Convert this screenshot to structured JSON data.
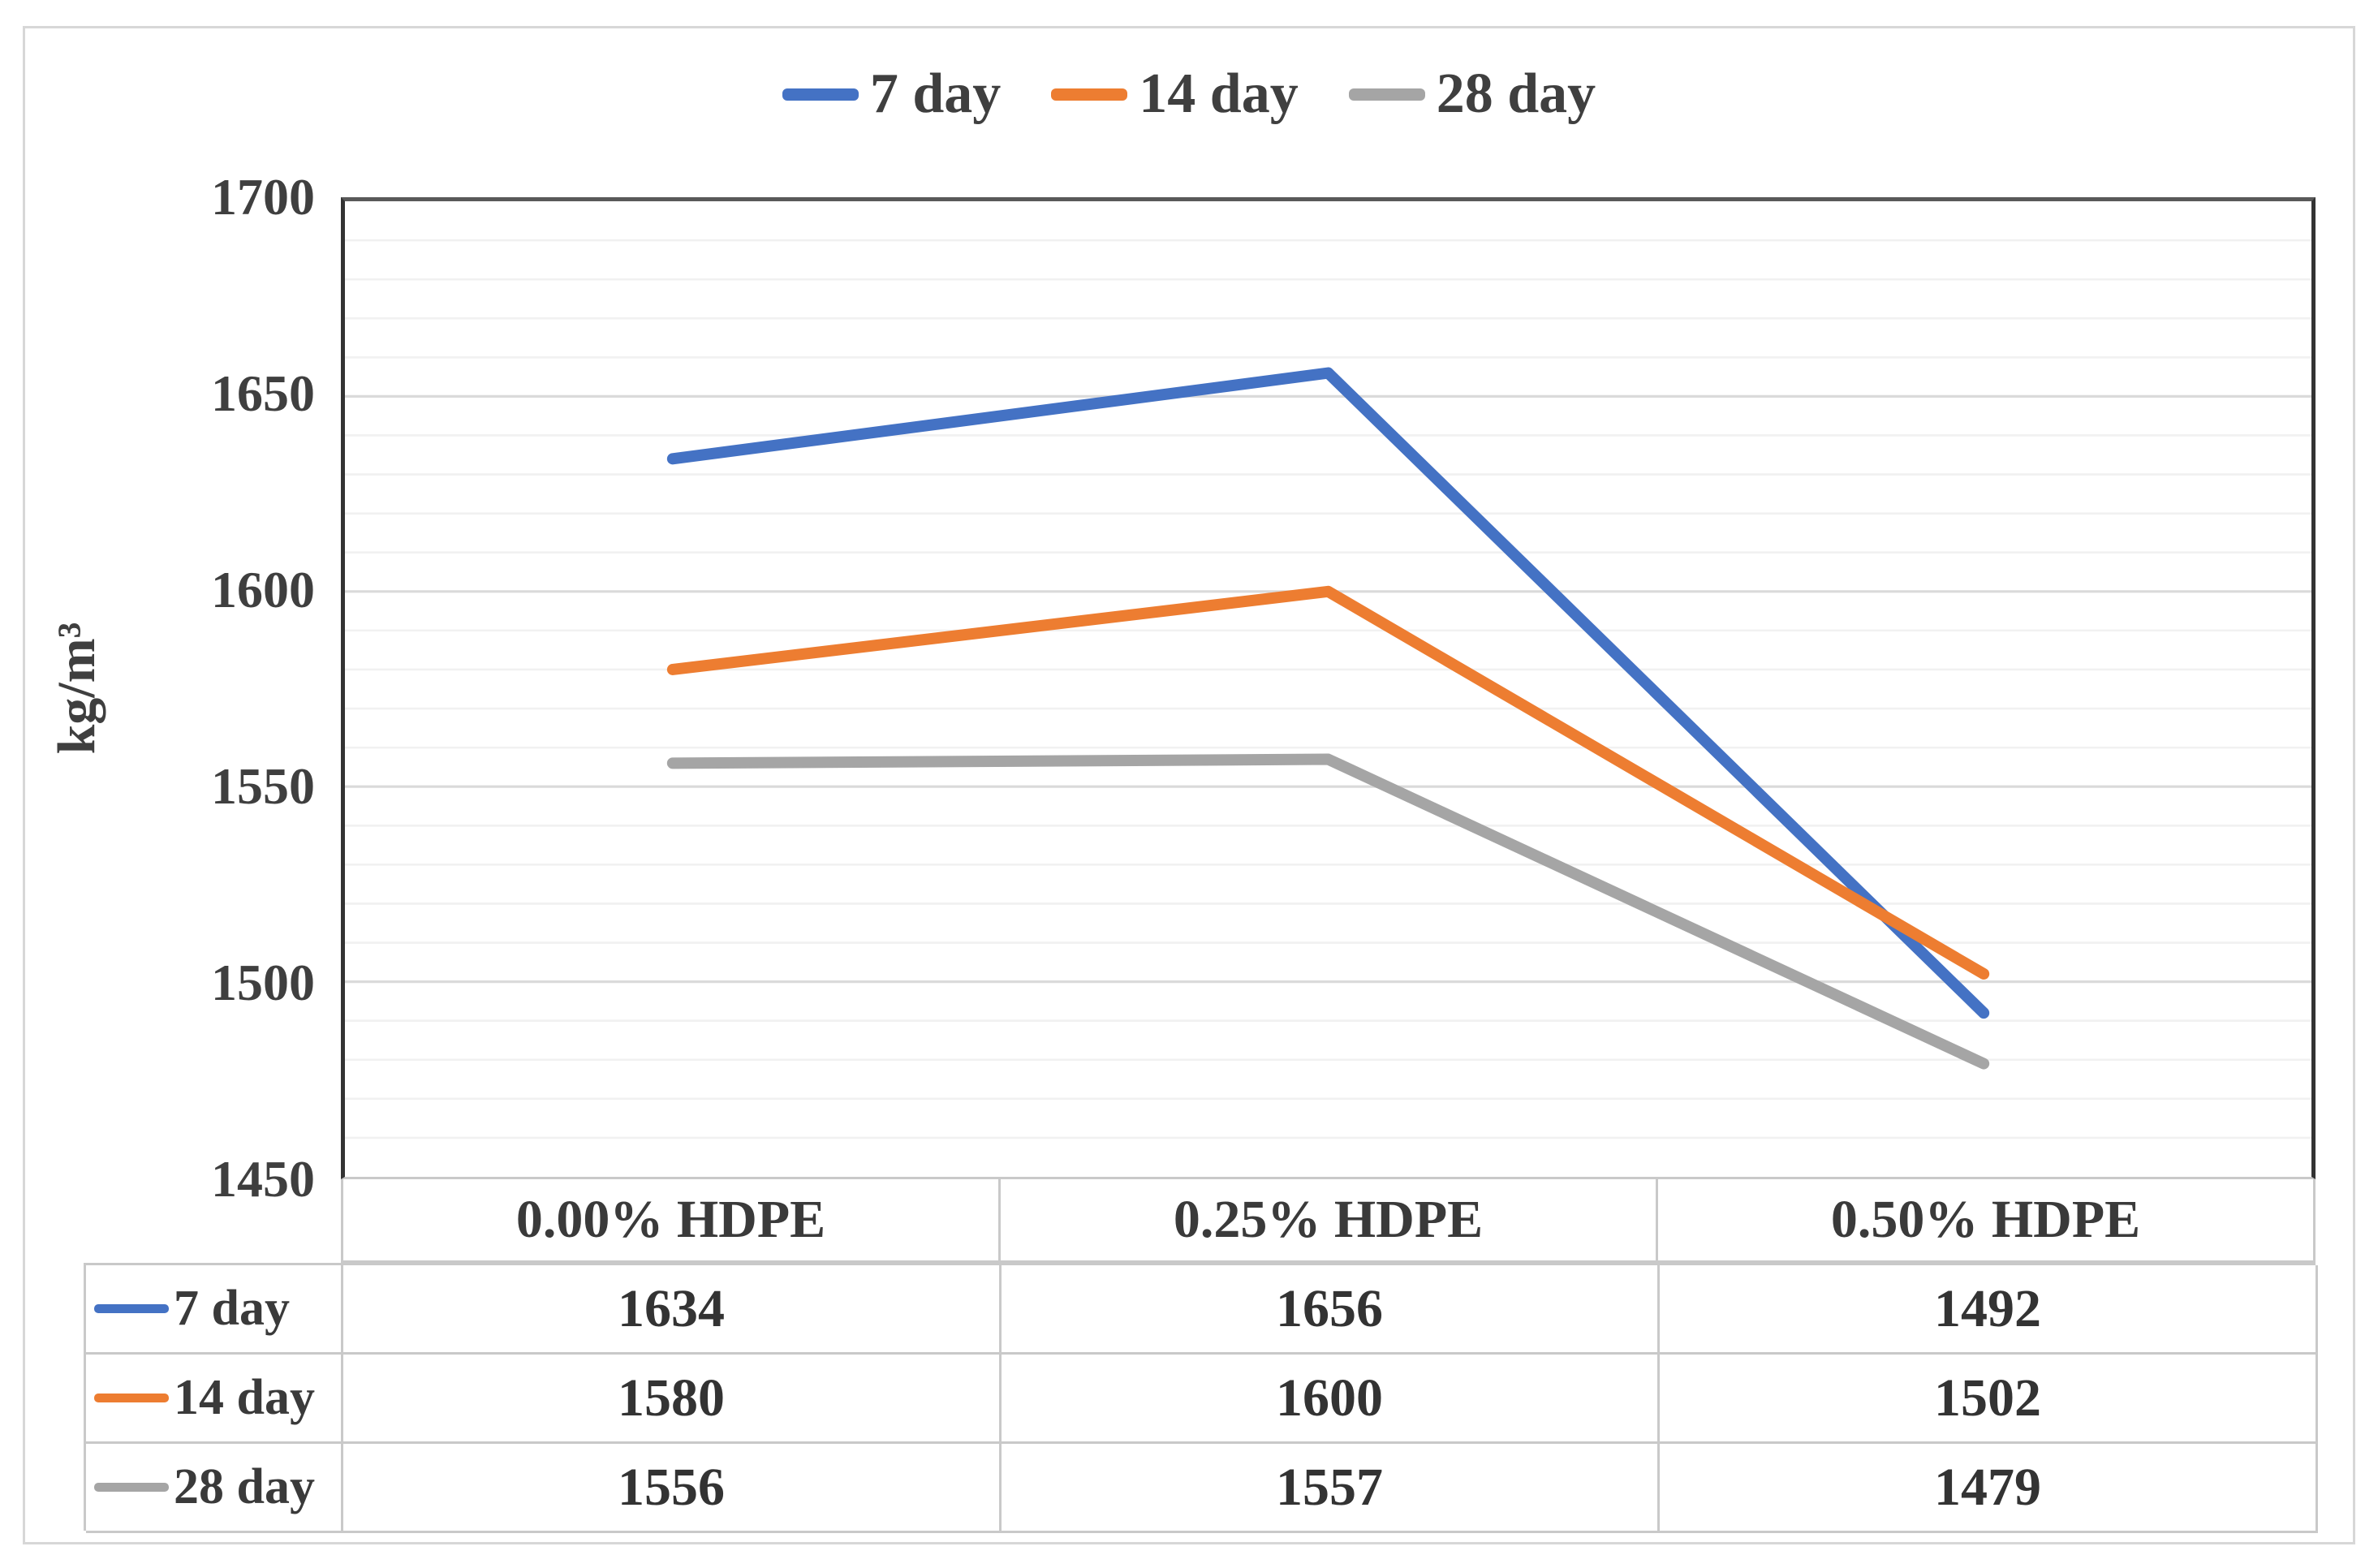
{
  "chart_data": {
    "type": "line",
    "title": "",
    "xlabel": "",
    "ylabel": "kg/m³",
    "categories": [
      "0.00% HDPE",
      "0.25% HDPE",
      "0.50% HDPE"
    ],
    "series": [
      {
        "name": "7 day",
        "color": "#4472C4",
        "values": [
          1634,
          1656,
          1492
        ]
      },
      {
        "name": "14 day",
        "color": "#ED7D31",
        "values": [
          1580,
          1600,
          1502
        ]
      },
      {
        "name": "28 day",
        "color": "#A5A5A5",
        "values": [
          1556,
          1557,
          1479
        ]
      }
    ],
    "ylim": [
      1450,
      1700
    ],
    "yticks": [
      "1700",
      "1650",
      "1600",
      "1550",
      "1500",
      "1450"
    ],
    "y_minor_step": 10,
    "y_major_step": 50,
    "grid": "horizontal-minor",
    "legend_position": "top",
    "data_table_attached": true,
    "colors": {
      "axis_border": "#595959",
      "major_gridline": "#dadada",
      "minor_gridline": "#f1f1f1",
      "table_border": "#c9c9c9",
      "text": "#3a3a3a"
    }
  }
}
